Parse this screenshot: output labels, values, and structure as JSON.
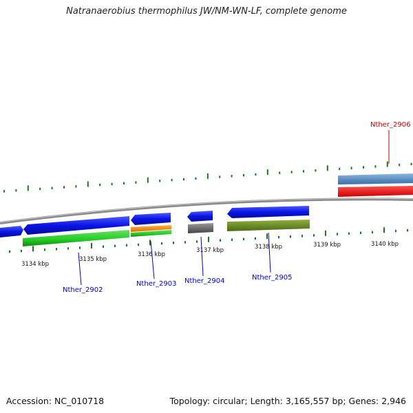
{
  "title": "Natranaerobius thermophilus JW/NM-WN-LF, complete genome",
  "footer": {
    "accession": "Accession: NC_010718",
    "info": "Topology: circular; Length: 3,165,557 bp; Genes: 2,946"
  },
  "scale": {
    "unit": "kbp",
    "ticks": [
      {
        "value": 3134,
        "label": "3134 kbp"
      },
      {
        "value": 3135,
        "label": "3135 kbp"
      },
      {
        "value": 3136,
        "label": "3136 kbp"
      },
      {
        "value": 3137,
        "label": "3137 kbp"
      },
      {
        "value": 3138,
        "label": "3138 kbp"
      },
      {
        "value": 3139,
        "label": "3139 kbp"
      },
      {
        "value": 3140,
        "label": "3140 kbp"
      }
    ]
  },
  "genes": [
    {
      "name": "Nther_2902",
      "color": "#0000cc"
    },
    {
      "name": "Nther_2903",
      "color": "#0000cc"
    },
    {
      "name": "Nther_2904",
      "color": "#0000cc"
    },
    {
      "name": "Nther_2905",
      "color": "#0000cc"
    },
    {
      "name": "Nther_2906",
      "color": "#cc0000"
    }
  ],
  "colors": {
    "cds": "#0a14e6",
    "gene": "#22cc22",
    "backbone": "#8a8a8a",
    "tick": "#1a7a1a",
    "orange": "#ff8c00",
    "olive": "#6b8e23",
    "gray": "#666666",
    "steelblue": "#4a86c0",
    "red": "#ee0000"
  }
}
